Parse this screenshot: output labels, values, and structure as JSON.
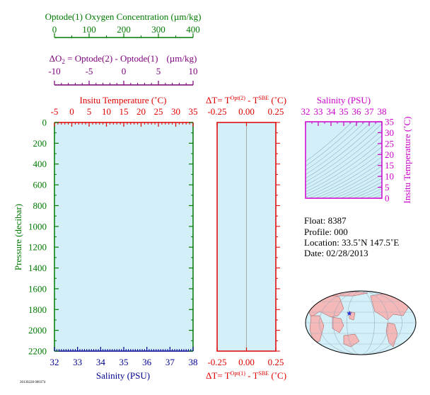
{
  "header": {
    "oxygen_title": "Optode(1) Oxygen Concentration (µm/kg)",
    "oxygen_ticks": [
      "0",
      "100",
      "200",
      "300",
      "400"
    ],
    "delta_o2_prefix": "ΔO",
    "delta_o2_sub": "2",
    "delta_o2_rest": " = Optode(2) - Optode(1)",
    "delta_o2_units": "(µm/kg)",
    "delta_o2_ticks": [
      "-10",
      "-5",
      "0",
      "5",
      "10"
    ]
  },
  "main_panel": {
    "temp_title": "Insitu Temperature (˚C)",
    "temp_ticks": [
      "-5",
      "0",
      "5",
      "10",
      "15",
      "20",
      "25",
      "30",
      "35"
    ],
    "pressure_label": "Pressure (decibar)",
    "pressure_ticks": [
      "0",
      "200",
      "400",
      "600",
      "800",
      "1000",
      "1200",
      "1400",
      "1600",
      "1800",
      "2000",
      "2200"
    ],
    "salinity_ticks": [
      "32",
      "33",
      "34",
      "35",
      "36",
      "37",
      "38"
    ],
    "salinity_label": "Salinity (PSU)"
  },
  "delta_panel": {
    "top_prefix": "ΔT= T",
    "top_sup1": "Opt(2)",
    "top_mid": " - T",
    "top_sup2": "SBE",
    "top_units": " (˚C)",
    "top_ticks": [
      "-0.25",
      "0.00",
      "0.25"
    ],
    "bottom_prefix": "ΔT= T",
    "bottom_sup1": "Opt(1)",
    "bottom_mid": " - T",
    "bottom_sup2": "SBE",
    "bottom_units": " (˚C)",
    "bottom_ticks": [
      "-0.25",
      "0.00",
      "0.25"
    ]
  },
  "ts_panel": {
    "salinity_title": "Salinity (PSU)",
    "salinity_ticks": [
      "32",
      "33",
      "34",
      "35",
      "36",
      "37",
      "38"
    ],
    "temp_label": "Insitu Temperature (˚C)",
    "temp_ticks": [
      "0",
      "5",
      "10",
      "15",
      "20",
      "25",
      "30",
      "35"
    ]
  },
  "info": {
    "float": "Float:  8387",
    "profile": "Profile:  000",
    "location": "Location:  33.5˚N  147.5˚E",
    "date": "Date:  02/28/2013"
  },
  "footer_tag": "20130228 000374",
  "colors": {
    "oxygen": "#007a00",
    "delta_o2": "#7a007a",
    "temperature": "#e00000",
    "pressure": "#007a00",
    "salinity": "#000090",
    "delta_t": "#e00000",
    "ts_axis": "#cc00cc",
    "panel_fill": "#d3f0f8"
  },
  "chart_data": [
    {
      "type": "line",
      "title": "",
      "xlabel": "Insitu Temperature (˚C)",
      "x2label": "Salinity (PSU)",
      "ylabel": "Pressure (decibar)",
      "xlim": [
        -5,
        35
      ],
      "x2lim": [
        32,
        38
      ],
      "ylim": [
        2200,
        0
      ],
      "series": []
    },
    {
      "type": "line",
      "xlabel_top": "ΔT= T Opt(2) - T SBE (˚C)",
      "xlabel_bottom": "ΔT= T Opt(1) - T SBE (˚C)",
      "xlim": [
        -0.25,
        0.25
      ],
      "ylim": [
        2200,
        0
      ],
      "series": []
    },
    {
      "type": "scatter",
      "xlabel": "Salinity (PSU)",
      "ylabel": "Insitu Temperature (˚C)",
      "xlim": [
        32,
        38
      ],
      "ylim": [
        0,
        35
      ],
      "series": []
    }
  ],
  "map": {
    "marker_lat": 33.5,
    "marker_lon": 147.5
  }
}
